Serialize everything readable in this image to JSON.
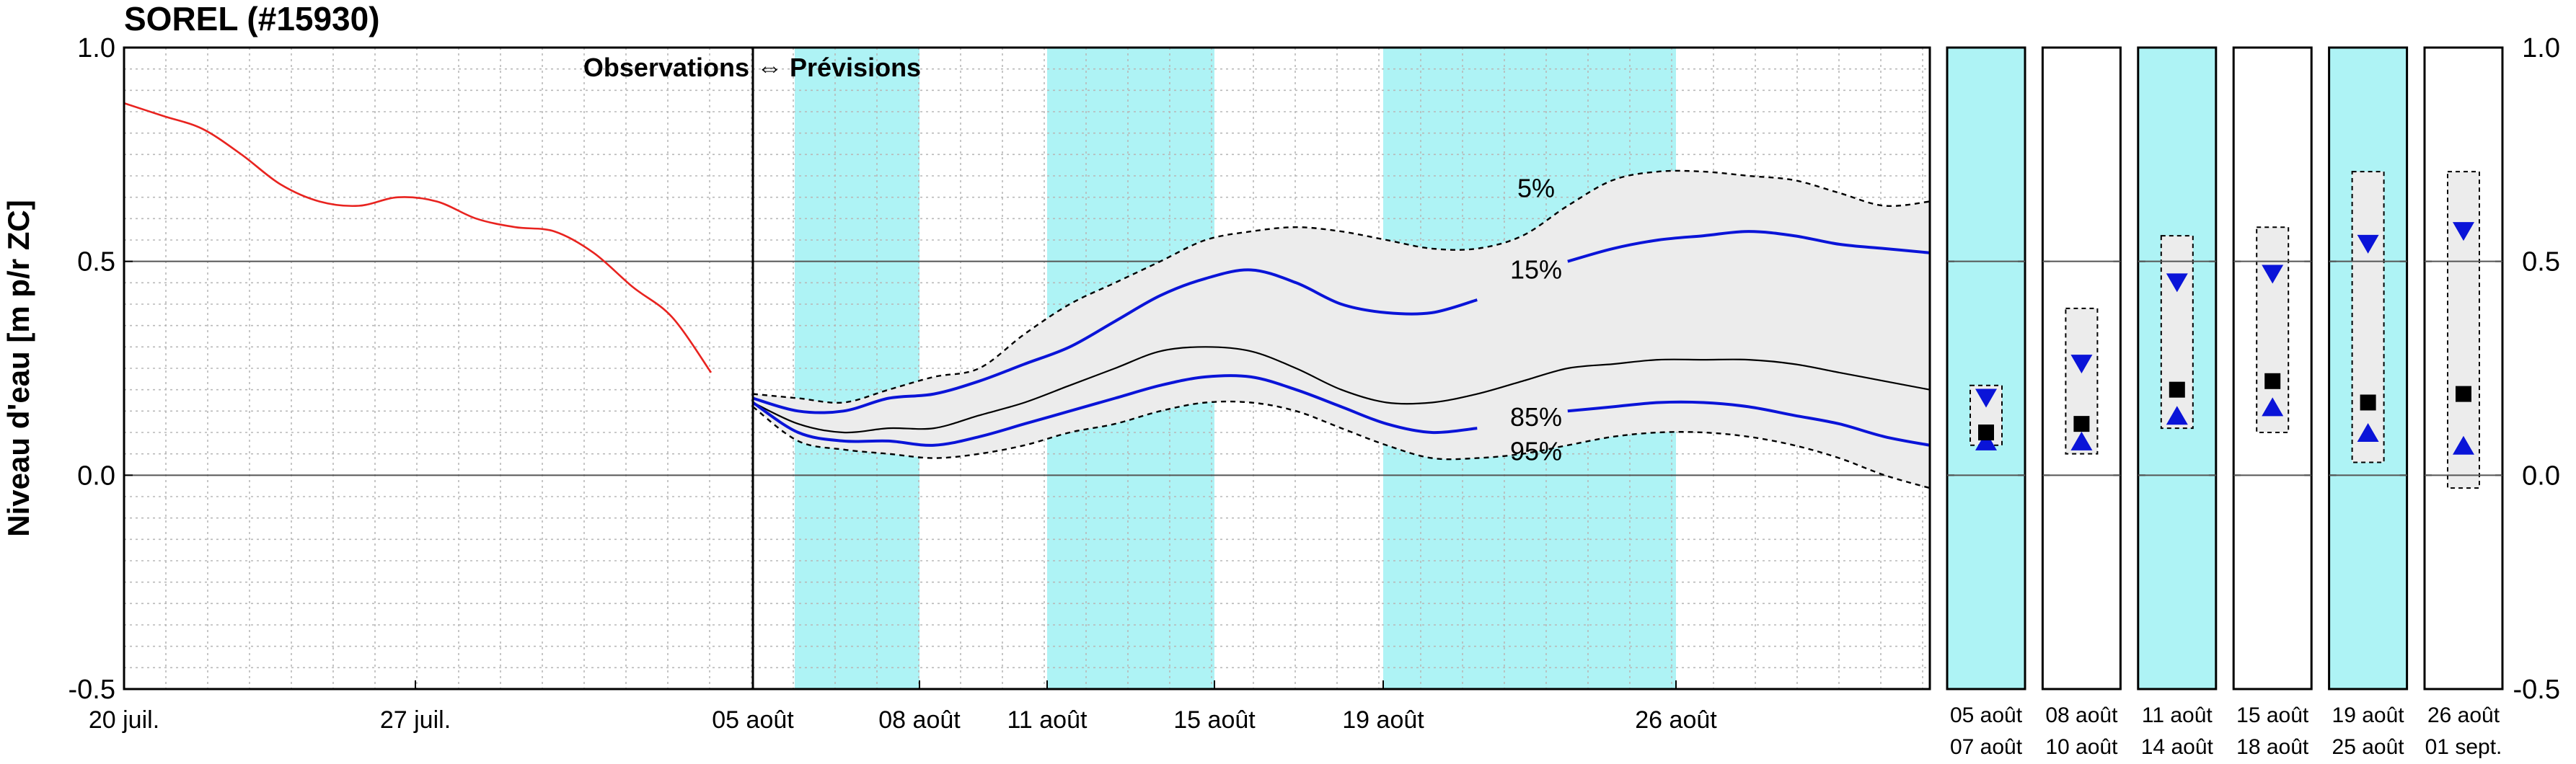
{
  "chart_data": {
    "type": "line",
    "title": "SOREL (#15930)",
    "ylabel": "Niveau d'eau [m p/r ZC]",
    "ylim": [
      -0.5,
      1.0
    ],
    "yticks": [
      "1.0",
      "0.5",
      "0.0",
      "-0.5"
    ],
    "grid": true,
    "divider_label": "Observations ⇔ Prévisions",
    "x_tick_labels": [
      "20 juil.",
      "27 juil.",
      "05 août",
      "08 août",
      "11 août",
      "15 août",
      "19 août",
      "26 août"
    ],
    "shaded_periods": [
      {
        "start": "05 août",
        "end": "07 août"
      },
      {
        "start": "11 août",
        "end": "14 août"
      },
      {
        "start": "19 août",
        "end": "25 août"
      }
    ],
    "colors": {
      "observations": "#e8231f",
      "percentile_blue": "#0a14d8",
      "median": "#000000",
      "band": "#ececec",
      "shade": "#aef3f5"
    },
    "observations": {
      "x": [
        0,
        1,
        2,
        3,
        4,
        5,
        6,
        7,
        8,
        9,
        10,
        11,
        12,
        13,
        14,
        15
      ],
      "y": [
        0.87,
        0.84,
        0.81,
        0.75,
        0.68,
        0.64,
        0.63,
        0.65,
        0.64,
        0.6,
        0.58,
        0.57,
        0.52,
        0.44,
        0.37,
        0.24
      ]
    },
    "forecast_x": [
      16,
      17,
      18,
      19,
      20,
      21,
      22,
      23,
      24,
      25,
      26,
      27,
      28,
      29,
      30,
      31,
      32,
      33,
      34,
      35,
      36,
      37,
      38,
      39,
      40,
      41,
      42
    ],
    "series": [
      {
        "name": "5%",
        "style": "dashed",
        "values": [
          0.19,
          0.18,
          0.17,
          0.2,
          0.23,
          0.25,
          0.33,
          0.4,
          0.45,
          0.5,
          0.55,
          0.57,
          0.58,
          0.57,
          0.55,
          0.53,
          0.53,
          0.56,
          0.63,
          0.69,
          0.71,
          0.71,
          0.7,
          0.69,
          0.66,
          0.63,
          0.64
        ]
      },
      {
        "name": "15%",
        "style": "blue",
        "values": [
          0.18,
          0.15,
          0.15,
          0.18,
          0.19,
          0.22,
          0.26,
          0.3,
          0.36,
          0.42,
          0.46,
          0.48,
          0.45,
          0.4,
          0.38,
          0.38,
          0.41,
          0.45,
          0.5,
          0.53,
          0.55,
          0.56,
          0.57,
          0.56,
          0.54,
          0.53,
          0.52
        ]
      },
      {
        "name": "median",
        "style": "black",
        "values": [
          0.17,
          0.12,
          0.1,
          0.11,
          0.11,
          0.14,
          0.17,
          0.21,
          0.25,
          0.29,
          0.3,
          0.29,
          0.25,
          0.2,
          0.17,
          0.17,
          0.19,
          0.22,
          0.25,
          0.26,
          0.27,
          0.27,
          0.27,
          0.26,
          0.24,
          0.22,
          0.2
        ]
      },
      {
        "name": "85%",
        "style": "blue",
        "values": [
          0.17,
          0.1,
          0.08,
          0.08,
          0.07,
          0.09,
          0.12,
          0.15,
          0.18,
          0.21,
          0.23,
          0.23,
          0.2,
          0.16,
          0.12,
          0.1,
          0.11,
          0.13,
          0.15,
          0.16,
          0.17,
          0.17,
          0.16,
          0.14,
          0.12,
          0.09,
          0.07
        ]
      },
      {
        "name": "95%",
        "style": "dashed",
        "values": [
          0.16,
          0.08,
          0.06,
          0.05,
          0.04,
          0.05,
          0.07,
          0.1,
          0.12,
          0.15,
          0.17,
          0.17,
          0.15,
          0.11,
          0.07,
          0.04,
          0.04,
          0.05,
          0.07,
          0.09,
          0.1,
          0.1,
          0.09,
          0.07,
          0.04,
          0.0,
          -0.03
        ]
      }
    ],
    "percentile_labels": [
      "5%",
      "15%",
      "85%",
      "95%"
    ],
    "panels": [
      {
        "label1": "05 août",
        "label2": "07 août",
        "shaded": true,
        "band": [
          0.07,
          0.21
        ],
        "down": 0.18,
        "square": 0.1,
        "up": 0.08
      },
      {
        "label1": "08 août",
        "label2": "10 août",
        "shaded": false,
        "band": [
          0.05,
          0.39
        ],
        "down": 0.26,
        "square": 0.12,
        "up": 0.08
      },
      {
        "label1": "11 août",
        "label2": "14 août",
        "shaded": true,
        "band": [
          0.11,
          0.56
        ],
        "down": 0.45,
        "square": 0.2,
        "up": 0.14
      },
      {
        "label1": "15 août",
        "label2": "18 août",
        "shaded": false,
        "band": [
          0.1,
          0.58
        ],
        "down": 0.47,
        "square": 0.22,
        "up": 0.16
      },
      {
        "label1": "19 août",
        "label2": "25 août",
        "shaded": true,
        "band": [
          0.03,
          0.71
        ],
        "down": 0.54,
        "square": 0.17,
        "up": 0.1
      },
      {
        "label1": "26 août",
        "label2": "01 sept.",
        "shaded": false,
        "band": [
          -0.03,
          0.71
        ],
        "down": 0.57,
        "square": 0.19,
        "up": 0.07
      }
    ]
  }
}
